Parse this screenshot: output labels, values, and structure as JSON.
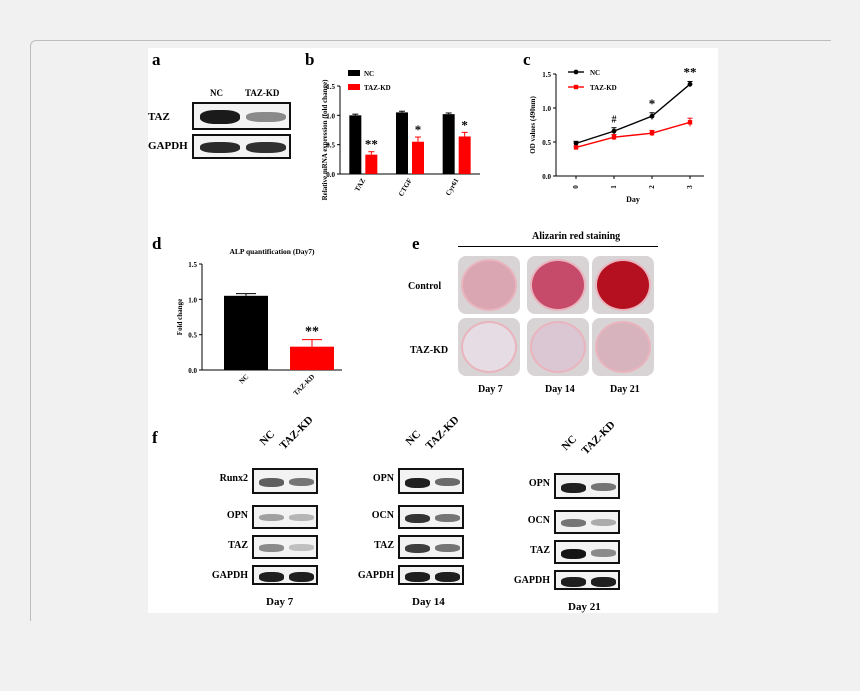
{
  "panels": {
    "a": "a",
    "b": "b",
    "c": "c",
    "d": "d",
    "e": "e",
    "f": "f"
  },
  "panel_a": {
    "lanes": [
      "NC",
      "TAZ-KD"
    ],
    "rows": [
      "TAZ",
      "GAPDH"
    ]
  },
  "panel_e": {
    "title": "Alizarin red staining",
    "rows": [
      "Control",
      "TAZ-KD"
    ],
    "cols": [
      "Day 7",
      "Day 14",
      "Day 21"
    ],
    "colors": [
      [
        "#d9a6b1",
        "#c64a69",
        "#b4101f"
      ],
      [
        "#e6dde4",
        "#dbc6d3",
        "#d7b3bd"
      ]
    ]
  },
  "panel_f": {
    "groups": [
      {
        "day": "Day 7",
        "lanes": [
          "NC",
          "TAZ-KD"
        ],
        "rows": [
          "Runx2",
          "OPN",
          "TAZ",
          "GAPDH"
        ]
      },
      {
        "day": "Day 14",
        "lanes": [
          "NC",
          "TAZ-KD"
        ],
        "rows": [
          "OPN",
          "OCN",
          "TAZ",
          "GAPDH"
        ]
      },
      {
        "day": "Day 21",
        "lanes": [
          "NC",
          "TAZ-KD"
        ],
        "rows": [
          "OPN",
          "OCN",
          "TAZ",
          "GAPDH"
        ]
      }
    ]
  },
  "colors": {
    "nc": "#000000",
    "kd": "#ff0000"
  },
  "chart_data": [
    {
      "panel": "b",
      "type": "bar",
      "ylabel": "Relative mRNA expression (fold change)",
      "categories": [
        "TAZ",
        "CTGF",
        "Cyr61"
      ],
      "ylim": [
        0,
        1.5
      ],
      "yticks": [
        "0.0",
        "0.5",
        "1.0",
        "1.5"
      ],
      "legend": [
        "NC",
        "TAZ-KD"
      ],
      "series": [
        {
          "name": "NC",
          "values": [
            1.0,
            1.05,
            1.02
          ],
          "errors": [
            0.02,
            0.02,
            0.02
          ]
        },
        {
          "name": "TAZ-KD",
          "values": [
            0.33,
            0.55,
            0.64
          ],
          "errors": [
            0.05,
            0.08,
            0.07
          ]
        }
      ],
      "annotations": [
        "**",
        "*",
        "*"
      ]
    },
    {
      "panel": "c",
      "type": "line",
      "ylabel": "OD values (490nm)",
      "xlabel": "Day",
      "x": [
        0,
        1,
        2,
        3
      ],
      "ylim": [
        0,
        1.5
      ],
      "yticks": [
        "0.0",
        "0.5",
        "1.0",
        "1.5"
      ],
      "xticks": [
        "0",
        "1",
        "2",
        "3"
      ],
      "legend": [
        "NC",
        "TAZ-KD"
      ],
      "series": [
        {
          "name": "NC",
          "values": [
            0.48,
            0.66,
            0.88,
            1.35
          ],
          "errors": [
            0.03,
            0.05,
            0.05,
            0.04
          ]
        },
        {
          "name": "TAZ-KD",
          "values": [
            0.42,
            0.57,
            0.63,
            0.79
          ],
          "errors": [
            0.02,
            0.04,
            0.04,
            0.06
          ]
        }
      ],
      "annotations": [
        "",
        "#",
        "*",
        "**"
      ]
    },
    {
      "panel": "d",
      "type": "bar",
      "title": "ALP quantification (Day7)",
      "ylabel": "Fold change",
      "categories": [
        "NC",
        "TAZ-KD"
      ],
      "ylim": [
        0,
        1.5
      ],
      "yticks": [
        "0.0",
        "0.5",
        "1.0",
        "1.5"
      ],
      "values": [
        1.05,
        0.33
      ],
      "errors": [
        0.03,
        0.1
      ],
      "annotations": [
        "",
        "**"
      ]
    }
  ]
}
